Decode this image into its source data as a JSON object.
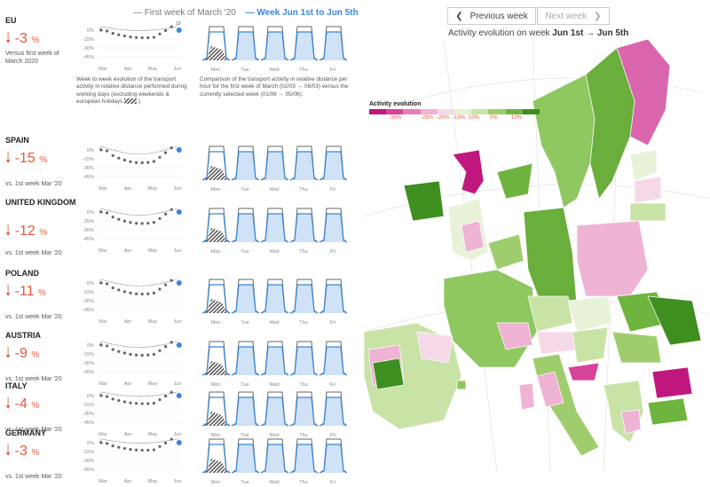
{
  "legend": {
    "first_week": "— First week of March '20",
    "selected_week": "— Week Jun 1st to Jun 5th"
  },
  "nav": {
    "previous": "Previous week",
    "next": "Next week",
    "prev_icon": "chevron-left-icon",
    "next_icon": "chevron-right-icon"
  },
  "map": {
    "title_prefix": "Activity evolution on week ",
    "title_week": "Jun 1st → Jun 5th"
  },
  "activity_legend": {
    "title": "Activity evolution",
    "ticks": [
      "-35%",
      "-25%",
      "-20%",
      "-15%",
      "10%",
      "0%",
      "10%"
    ],
    "colors": [
      "#c0177e",
      "#d6439b",
      "#e27fba",
      "#efb3d4",
      "#f6d9e8",
      "#e8f2d8",
      "#c9e3a6",
      "#9fcd6d",
      "#6fb43f",
      "#3e8f1f"
    ]
  },
  "desc": {
    "weekly": "Week to week evolution of the transport activity in relative distance performed during working days (excluding weekends & european holidays",
    "weekly_end": ").",
    "hourly": "Comparison of the transport activity in relative distance per hour for the first week of March (02/03 → 06/03) versus the currently selected week (01/06 → 05/06)."
  },
  "axis": {
    "y_ticks": [
      "0%",
      "-15%",
      "-30%",
      "-45%"
    ],
    "months": [
      "Mar",
      "Apr",
      "May",
      "Jun"
    ],
    "days": [
      "Mon",
      "Tue",
      "Wed",
      "Thu",
      "Fri"
    ],
    "eu_marker": "19"
  },
  "countries": [
    {
      "name": "EU",
      "value": "-3",
      "unit": "%",
      "sub": "Versus first week of March 2020"
    },
    {
      "name": "SPAIN",
      "value": "-15",
      "unit": "%",
      "sub": "vs. 1st week Mar '20"
    },
    {
      "name": "UNITED KINGDOM",
      "value": "-12",
      "unit": "%",
      "sub": "vs. 1st week Mar '20"
    },
    {
      "name": "POLAND",
      "value": "-11",
      "unit": "%",
      "sub": "vs. 1st week Mar '20"
    },
    {
      "name": "AUSTRIA",
      "value": "-9",
      "unit": "%",
      "sub": "vs. 1st week Mar '20"
    },
    {
      "name": "ITALY",
      "value": "-4",
      "unit": "%",
      "sub": "vs. 1st week Mar '20"
    },
    {
      "name": "GERMANY",
      "value": "-3",
      "unit": "%",
      "sub": "vs. 1st week Mar '20"
    }
  ]
}
